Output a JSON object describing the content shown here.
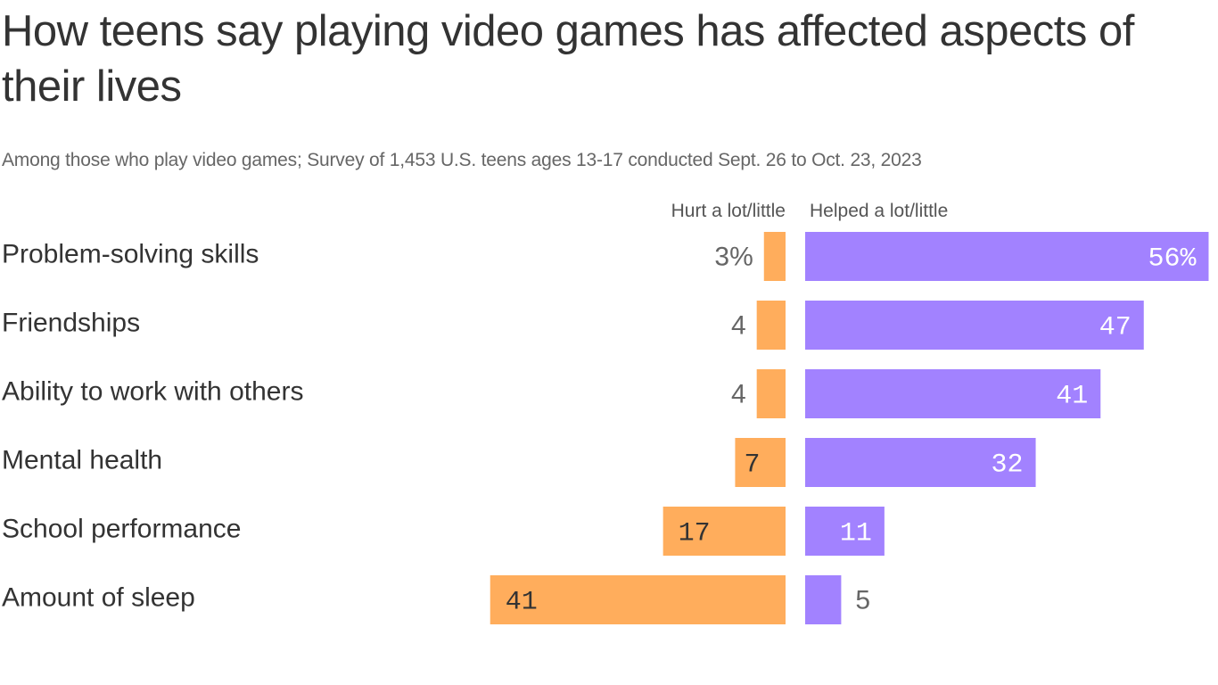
{
  "chart_data": {
    "type": "bar",
    "title": "How teens say playing video games has affected aspects of their lives",
    "subtitle": "Among those who play video games; Survey of 1,453 U.S. teens ages 13-17 conducted Sept. 26 to Oct. 23, 2023",
    "categories": [
      "Problem-solving skills",
      "Friendships",
      "Ability to work with others",
      "Mental health",
      "School performance",
      "Amount of sleep"
    ],
    "series": [
      {
        "name": "Hurt a lot/little",
        "color": "#FFAD5C",
        "values": [
          3,
          4,
          4,
          7,
          17,
          41
        ],
        "labels": [
          "3%",
          "4",
          "4",
          "7",
          "17",
          "41"
        ]
      },
      {
        "name": "Helped a lot/little",
        "color": "#A282FF",
        "values": [
          56,
          47,
          41,
          32,
          11,
          5
        ],
        "labels": [
          "56%",
          "47",
          "41",
          "32",
          "11",
          "5"
        ]
      }
    ],
    "unit": "%"
  }
}
